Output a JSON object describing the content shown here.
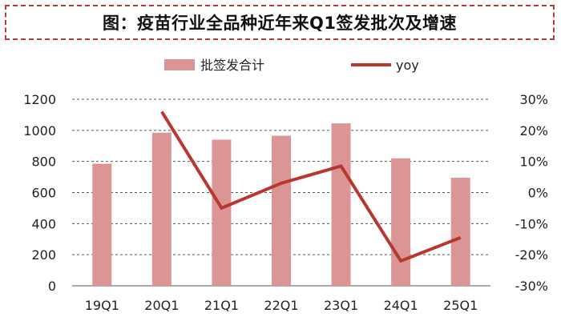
{
  "title": "图：疫苗行业全品种近年来Q1签发批次及增速",
  "colors": {
    "bar": "#db9595",
    "line": "#b8372f",
    "title_border": "#b83a3a",
    "grid": "#555555"
  },
  "chart_data": {
    "type": "bar",
    "categories": [
      "19Q1",
      "20Q1",
      "21Q1",
      "22Q1",
      "23Q1",
      "24Q1",
      "25Q1"
    ],
    "series": [
      {
        "name": "批签发合计",
        "type": "bar",
        "axis": "left",
        "values": [
          785,
          985,
          940,
          965,
          1045,
          820,
          695
        ]
      },
      {
        "name": "yoy",
        "type": "line",
        "axis": "right",
        "values": [
          null,
          0.26,
          -0.05,
          0.03,
          0.085,
          -0.22,
          -0.145
        ]
      }
    ],
    "y_left": {
      "ylim": [
        0,
        1200
      ],
      "ticks": [
        "0",
        "200",
        "400",
        "600",
        "800",
        "1000",
        "1200"
      ]
    },
    "y_right": {
      "ylim": [
        -0.3,
        0.3
      ],
      "ticks": [
        "-30%",
        "-20%",
        "-10%",
        "0%",
        "10%",
        "20%",
        "30%"
      ]
    },
    "grid": "dashed horizontal",
    "legend": "top-center"
  }
}
